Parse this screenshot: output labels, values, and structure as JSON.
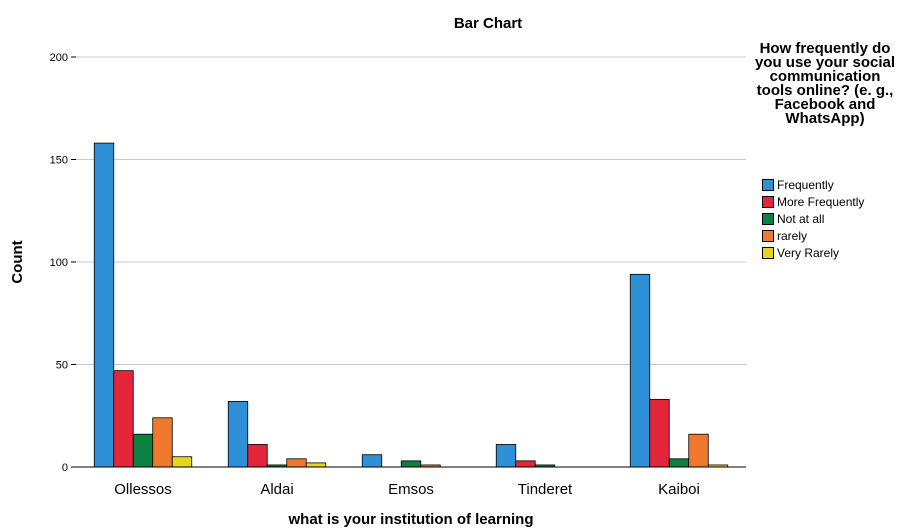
{
  "chart_data": {
    "type": "bar",
    "title": "Bar Chart",
    "xlabel": "what is your institution of learning",
    "ylabel": "Count",
    "ylim": [
      0,
      210
    ],
    "yticks": [
      0,
      50,
      100,
      150,
      200
    ],
    "grid": true,
    "legend_title": "How frequently do you use your social communication tools online? (e. g., Facebook and WhatsApp)",
    "legend_placement": "right",
    "categories": [
      "Ollessos",
      "Aldai",
      "Emsos",
      "Tinderet",
      "Kaiboi"
    ],
    "series": [
      {
        "name": "Frequently",
        "color": "#2f8fd7",
        "values": [
          158,
          32,
          6,
          11,
          94
        ]
      },
      {
        "name": "More Frequently",
        "color": "#e3253a",
        "values": [
          47,
          11,
          0,
          3,
          33
        ]
      },
      {
        "name": "Not at all",
        "color": "#0b8040",
        "values": [
          16,
          1,
          3,
          1,
          4
        ]
      },
      {
        "name": "rarely",
        "color": "#f0782d",
        "values": [
          24,
          4,
          1,
          0,
          16
        ]
      },
      {
        "name": "Very Rarely",
        "color": "#e6d420",
        "values": [
          5,
          2,
          0,
          0,
          1
        ]
      }
    ]
  }
}
